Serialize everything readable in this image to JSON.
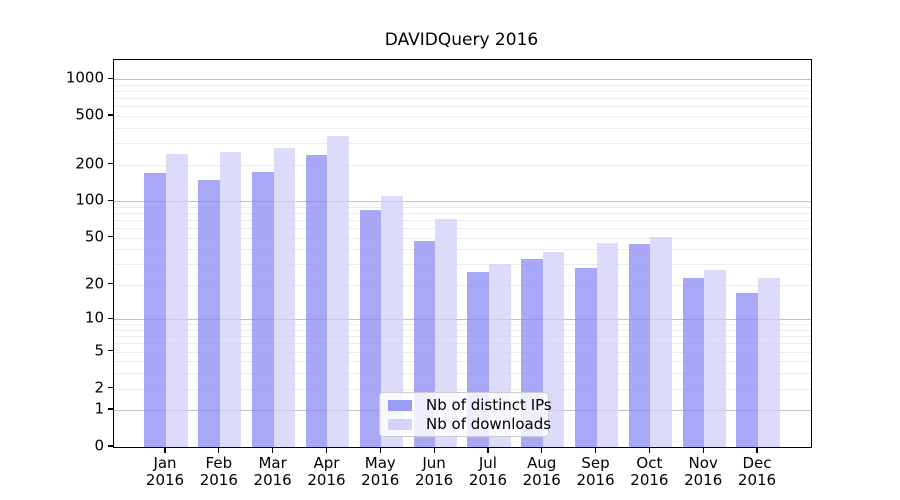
{
  "chart_data": {
    "type": "bar",
    "title": "DAVIDQuery 2016",
    "xlabel": "",
    "ylabel": "",
    "y_scale": "log1p",
    "ylim": [
      0,
      1430
    ],
    "grid": "on",
    "legend_position": "lower center",
    "y_ticks": [
      "0",
      "1",
      "2",
      "5",
      "10",
      "20",
      "50",
      "100",
      "200",
      "500",
      "1000"
    ],
    "x_tick_labels": [
      [
        "Jan",
        "2016"
      ],
      [
        "Feb",
        "2016"
      ],
      [
        "Mar",
        "2016"
      ],
      [
        "Apr",
        "2016"
      ],
      [
        "May",
        "2016"
      ],
      [
        "Jun",
        "2016"
      ],
      [
        "Jul",
        "2016"
      ],
      [
        "Aug",
        "2016"
      ],
      [
        "Sep",
        "2016"
      ],
      [
        "Oct",
        "2016"
      ],
      [
        "Nov",
        "2016"
      ],
      [
        "Dec",
        "2016"
      ]
    ],
    "series": [
      {
        "name": "Nb of distinct IPs",
        "color": "#a7a7f6",
        "values": [
          170,
          150,
          173,
          240,
          85,
          47,
          26,
          33,
          28,
          44,
          23,
          17
        ]
      },
      {
        "name": "Nb of downloads",
        "color": "#dbdbfa",
        "values": [
          243,
          252,
          276,
          345,
          110,
          71,
          30,
          38,
          45,
          51,
          27,
          23
        ]
      }
    ]
  },
  "colors": {
    "grid_major": "#c2c2c2",
    "grid_minor": "#ececec",
    "spine": "#000000",
    "background": "#ffffff"
  }
}
